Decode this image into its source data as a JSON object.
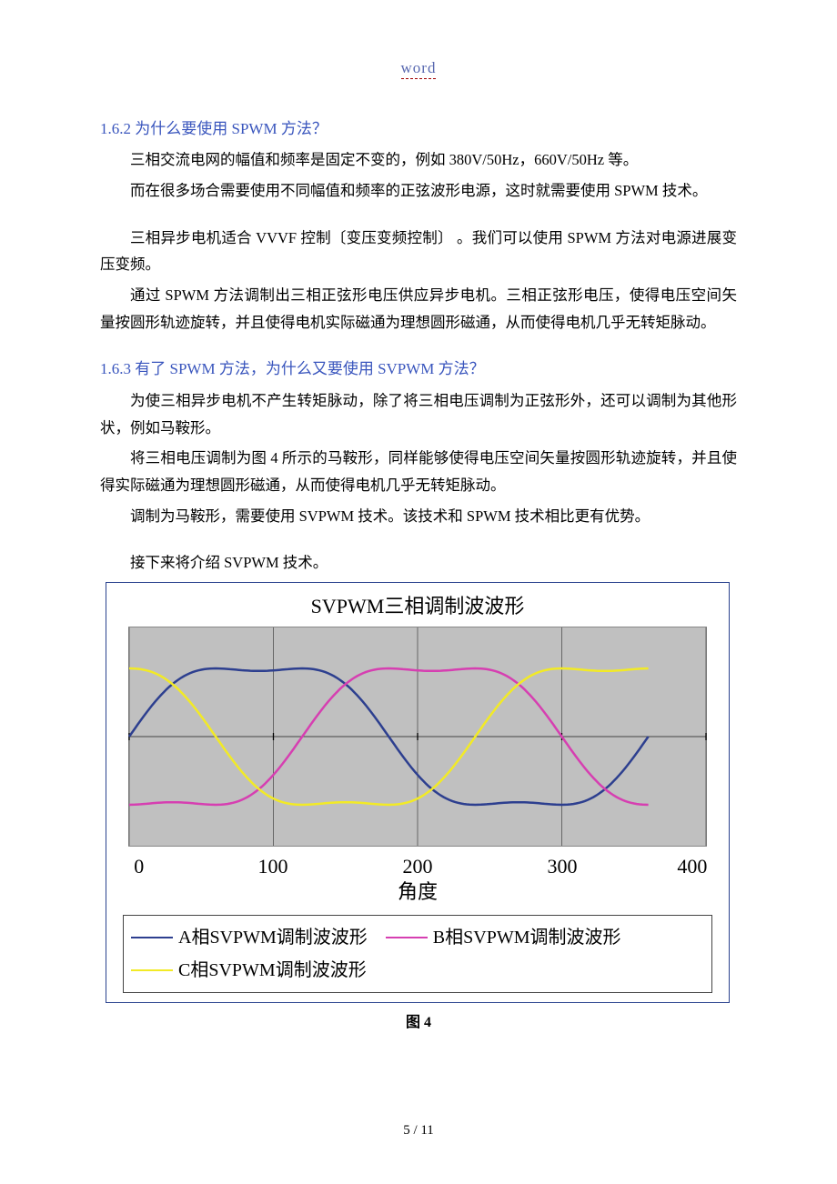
{
  "header": {
    "word_label": "word"
  },
  "section162": {
    "title": "1.6.2 为什么要使用 SPWM 方法？",
    "p1": "三相交流电网的幅值和频率是固定不变的，例如 380V/50Hz，660V/50Hz 等。",
    "p2": "而在很多场合需要使用不同幅值和频率的正弦波形电源，这时就需要使用 SPWM 技术。",
    "p3": "三相异步电机适合 VVVF 控制〔变压变频控制〕 。我们可以使用 SPWM 方法对电源进展变压变频。",
    "p4": "通过 SPWM 方法调制出三相正弦形电压供应异步电机。三相正弦形电压，使得电压空间矢量按圆形轨迹旋转，并且使得电机实际磁通为理想圆形磁通，从而使得电机几乎无转矩脉动。"
  },
  "section163": {
    "title": "1.6.3 有了 SPWM 方法，为什么又要使用 SVPWM 方法？",
    "p1": "为使三相异步电机不产生转矩脉动，除了将三相电压调制为正弦形外，还可以调制为其他形状，例如马鞍形。",
    "p2": "将三相电压调制为图 4 所示的马鞍形，同样能够使得电压空间矢量按圆形轨迹旋转，并且使得实际磁通为理想圆形磁通，从而使得电机几乎无转矩脉动。",
    "p3": "调制为马鞍形，需要使用 SVPWM 技术。该技术和 SPWM 技术相比更有优势。",
    "p4": "接下来将介绍 SVPWM 技术。"
  },
  "chart": {
    "type": "line",
    "title": "SVPWM三相调制波波形",
    "xlabel": "角度",
    "xlim": [
      0,
      400
    ],
    "xtick_step": 100,
    "xticks": [
      0,
      100,
      200,
      300,
      400
    ],
    "ylim": [
      -1.2,
      1.2
    ],
    "plot_bg": "#c0c0c0",
    "border_color": "#2a428e",
    "tick_font_family": "Times New Roman",
    "tick_fontsize": 22,
    "title_fontsize": 22,
    "line_width": 2.5,
    "series": [
      {
        "name": "A相SVPWM调制波波形",
        "color": "#2d3f8f",
        "phase_deg": 0
      },
      {
        "name": "B相SVPWM调制波波形",
        "color": "#d63fb1",
        "phase_deg": -120
      },
      {
        "name": "C相SVPWM调制波波形",
        "color": "#f2ea26",
        "phase_deg": -240
      }
    ],
    "caption": "图 4"
  },
  "footer": {
    "page_number": "5 / 11"
  }
}
